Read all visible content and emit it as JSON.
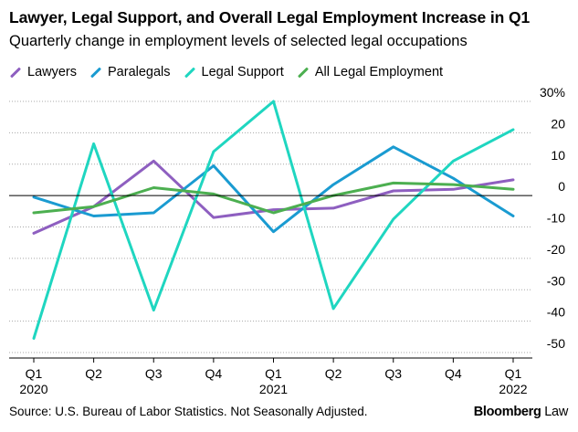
{
  "chart_data": {
    "type": "line",
    "title": "Lawyer, Legal Support, and Overall Legal Employment Increase in Q1",
    "subtitle": "Quarterly change in employment levels of selected legal occupations",
    "categories": [
      "Q1",
      "Q2",
      "Q3",
      "Q4",
      "Q1",
      "Q2",
      "Q3",
      "Q4",
      "Q1"
    ],
    "year_labels": [
      {
        "index": 0,
        "label": "2020"
      },
      {
        "index": 4,
        "label": "2021"
      },
      {
        "index": 8,
        "label": "2022"
      }
    ],
    "y_ticks": [
      30,
      20,
      10,
      0,
      -10,
      -20,
      -30,
      -40,
      -50
    ],
    "y_tick_labels": [
      "30%",
      "20",
      "10",
      "0",
      "-10",
      "-20",
      "-30",
      "-40",
      "-50"
    ],
    "ylim": [
      -50,
      30
    ],
    "legend_position": "top-left",
    "series": [
      {
        "name": "Lawyers",
        "color": "#8e5fc0",
        "values": [
          -12,
          -3.5,
          11,
          -7,
          -4.5,
          -4,
          1.5,
          2,
          5
        ]
      },
      {
        "name": "Paralegals",
        "color": "#1a9bd1",
        "values": [
          -0.5,
          -6.5,
          -5.5,
          9.5,
          -11.5,
          3.5,
          15.5,
          5.5,
          -6.5
        ]
      },
      {
        "name": "Legal Support",
        "color": "#1fd6c0",
        "values": [
          -45.5,
          16.5,
          -36.5,
          14,
          30,
          -36,
          -7.5,
          11,
          21
        ]
      },
      {
        "name": "All Legal Employment",
        "color": "#4caf50",
        "values": [
          -5.5,
          -3.5,
          2.5,
          0.5,
          -5.5,
          0,
          4,
          3.5,
          2
        ]
      }
    ]
  },
  "footer": {
    "source": "U.S. Bureau of Labor Statistics. Not Seasonally Adjusted.",
    "source_prefix": "Source: ",
    "brand_bold": "Bloomberg",
    "brand_light": " Law"
  }
}
